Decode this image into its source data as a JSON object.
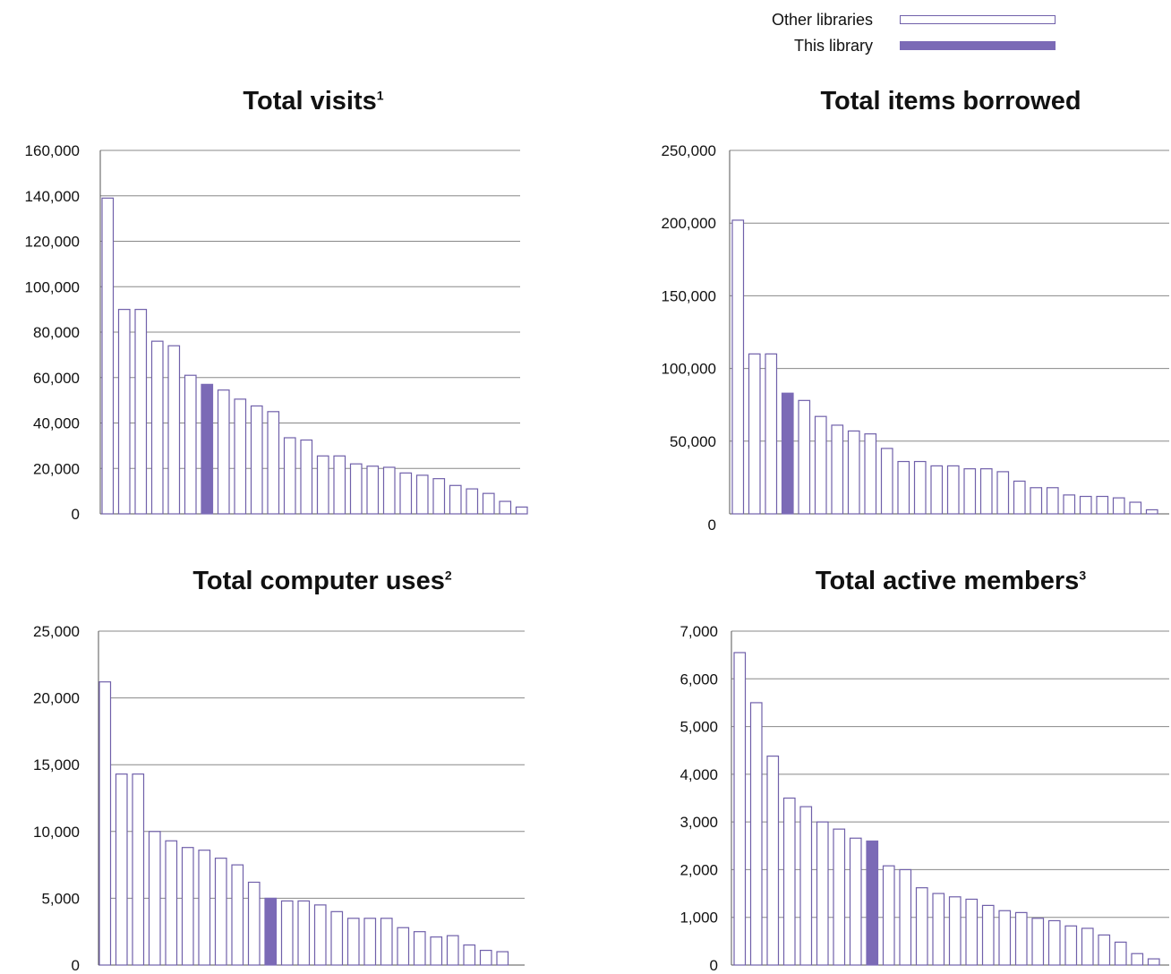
{
  "legend": {
    "other_label": "Other libraries",
    "this_label": "This library"
  },
  "colors": {
    "other_outline": "#7060aa",
    "this_fill": "#7b6ab6",
    "grid": "#888888",
    "axis": "#555555"
  },
  "chart_data": [
    {
      "type": "bar",
      "title": "Total visits",
      "title_note": "1",
      "ylim": [
        0,
        160000
      ],
      "ticks": [
        0,
        20000,
        40000,
        60000,
        80000,
        100000,
        120000,
        140000,
        160000
      ],
      "tick_labels": [
        "0",
        "20,000",
        "40,000",
        "60,000",
        "80,000",
        "100,000",
        "120,000",
        "140,000",
        "160,000"
      ],
      "highlight_index": 6,
      "values": [
        139000,
        90000,
        90000,
        76000,
        74000,
        61000,
        57000,
        54500,
        50500,
        47500,
        45000,
        33500,
        32500,
        25500,
        25500,
        22000,
        21000,
        20500,
        18000,
        17000,
        15500,
        12500,
        11000,
        9000,
        5500,
        3000
      ]
    },
    {
      "type": "bar",
      "title": "Total items borrowed",
      "title_note": "",
      "ylim": [
        0,
        250000
      ],
      "ticks": [
        50000,
        100000,
        150000,
        200000,
        250000
      ],
      "tick_labels": [
        "50,000",
        "100,000",
        "150,000",
        "200,000",
        "250,000"
      ],
      "zero_label": "0",
      "highlight_index": 3,
      "values": [
        202000,
        110000,
        110000,
        83000,
        78000,
        67000,
        61000,
        57000,
        55000,
        45000,
        36000,
        36000,
        33000,
        33000,
        31000,
        31000,
        29000,
        22500,
        18000,
        18000,
        13000,
        12000,
        12000,
        11000,
        8000,
        2800
      ]
    },
    {
      "type": "bar",
      "title": "Total computer uses",
      "title_note": "2",
      "ylim": [
        0,
        25000
      ],
      "ticks": [
        0,
        5000,
        10000,
        15000,
        20000,
        25000
      ],
      "tick_labels": [
        "0",
        "5,000",
        "10,000",
        "15,000",
        "20,000",
        "25,000"
      ],
      "highlight_index": 10,
      "values": [
        21200,
        14300,
        14300,
        10000,
        9300,
        8800,
        8600,
        8000,
        7500,
        6200,
        5000,
        4800,
        4800,
        4500,
        4000,
        3500,
        3500,
        3500,
        2800,
        2500,
        2100,
        2200,
        1500,
        1100,
        1000
      ]
    },
    {
      "type": "bar",
      "title": "Total active members",
      "title_note": "3",
      "ylim": [
        0,
        7000
      ],
      "ticks": [
        0,
        1000,
        2000,
        3000,
        4000,
        5000,
        6000,
        7000
      ],
      "tick_labels": [
        "0",
        "1,000",
        "2,000",
        "3,000",
        "4,000",
        "5,000",
        "6,000",
        "7,000"
      ],
      "highlight_index": 8,
      "values": [
        6550,
        5500,
        4380,
        3500,
        3320,
        3000,
        2850,
        2660,
        2600,
        2080,
        2000,
        1620,
        1500,
        1430,
        1380,
        1250,
        1140,
        1100,
        980,
        930,
        820,
        770,
        630,
        480,
        240,
        130
      ]
    }
  ]
}
